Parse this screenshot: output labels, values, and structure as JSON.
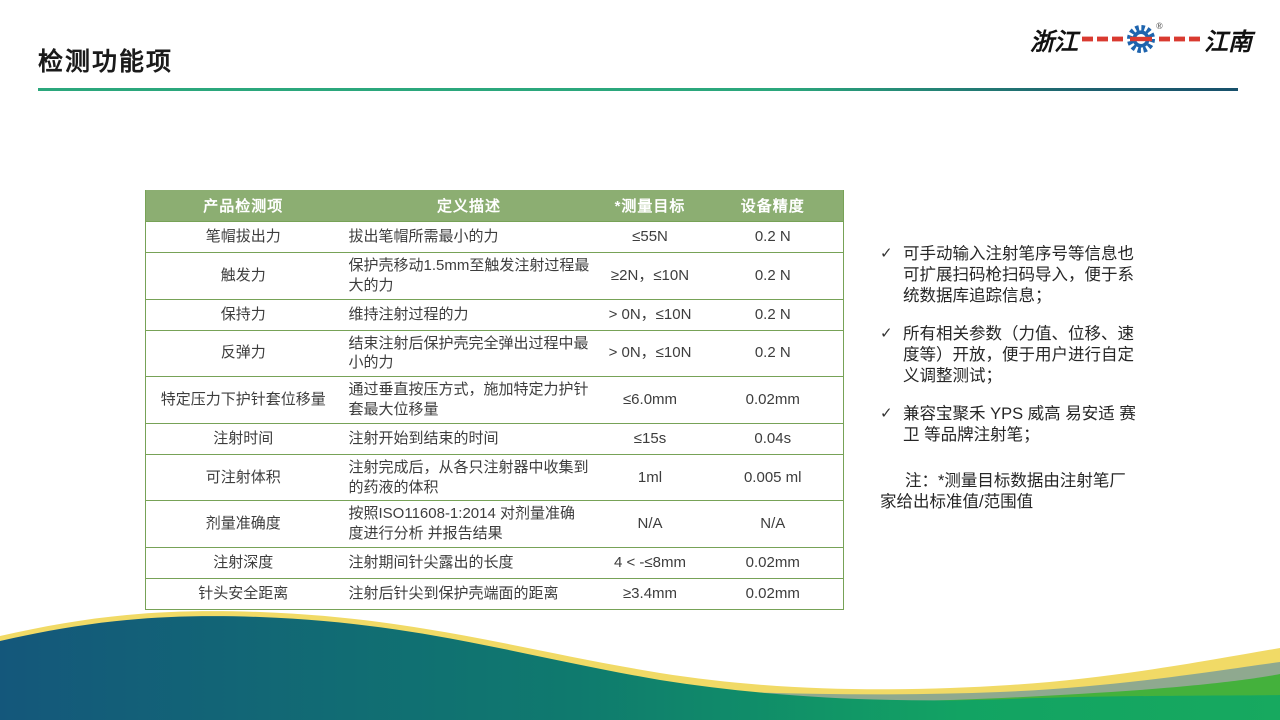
{
  "slide": {
    "title": "检测功能项",
    "logo": {
      "left": "浙江",
      "right": "江南",
      "registered": "®"
    },
    "table": {
      "columns": [
        "产品检测项",
        "定义描述",
        "*测量目标",
        "设备精度"
      ],
      "rows": [
        {
          "item": "笔帽拔出力",
          "definition": "拔出笔帽所需最小的力",
          "target": "≤55N",
          "precision": "0.2 N"
        },
        {
          "item": "触发力",
          "definition": "保护壳移动1.5mm至触发注射过程最大的力",
          "target": "≥2N，≤10N",
          "precision": "0.2 N"
        },
        {
          "item": "保持力",
          "definition": "维持注射过程的力",
          "target": "> 0N，≤10N",
          "precision": "0.2 N"
        },
        {
          "item": "反弹力",
          "definition": "结束注射后保护壳完全弹出过程中最小的力",
          "target": "> 0N，≤10N",
          "precision": "0.2 N"
        },
        {
          "item": "特定压力下护针套位移量",
          "definition": "通过垂直按压方式，施加特定力护针套最大位移量",
          "target": "≤6.0mm",
          "precision": "0.02mm"
        },
        {
          "item": "注射时间",
          "definition": "注射开始到结束的时间",
          "target": "≤15s",
          "precision": "0.04s"
        },
        {
          "item": "可注射体积",
          "definition": "注射完成后，从各只注射器中收集到的药液的体积",
          "target": "1ml",
          "precision": "0.005 ml"
        },
        {
          "item": "剂量准确度",
          "definition": "按照ISO11608-1:2014 对剂量准确度进行分析 并报告结果",
          "target": "N/A",
          "precision": "N/A"
        },
        {
          "item": "注射深度",
          "definition": "注射期间针尖露出的长度",
          "target": "4 < -≤8mm",
          "precision": "0.02mm"
        },
        {
          "item": "针头安全距离",
          "definition": "注射后针尖到保护壳端面的距离",
          "target": "≥3.4mm",
          "precision": "0.02mm"
        }
      ]
    },
    "notes": {
      "check_icon": "✓",
      "bullets": [
        "可手动输入注射笔序号等信息也可扩展扫码枪扫码导入，便于系统数据库追踪信息；",
        "所有相关参数（力值、位移、速度等）开放，便于用户进行自定义调整测试；",
        "兼容宝聚禾 YPS 威高 易安适 赛卫 等品牌注射笔；"
      ],
      "note": "注：*测量目标数据由注射笔厂家给出标准值/范围值"
    },
    "colors": {
      "header_bg": "#8CAE72",
      "table_border": "#77A257",
      "underline_green": "#2BA77C",
      "underline_dark": "#17506B",
      "wave_blue": "#14577B",
      "wave_green": "#17A95F",
      "wave_yellow": "#F1DA66",
      "wave_sage": "#8FA98F",
      "wave_bright_green": "#44B13C",
      "gear_blue": "#1E64AE",
      "gear_red": "#D93A30"
    }
  }
}
